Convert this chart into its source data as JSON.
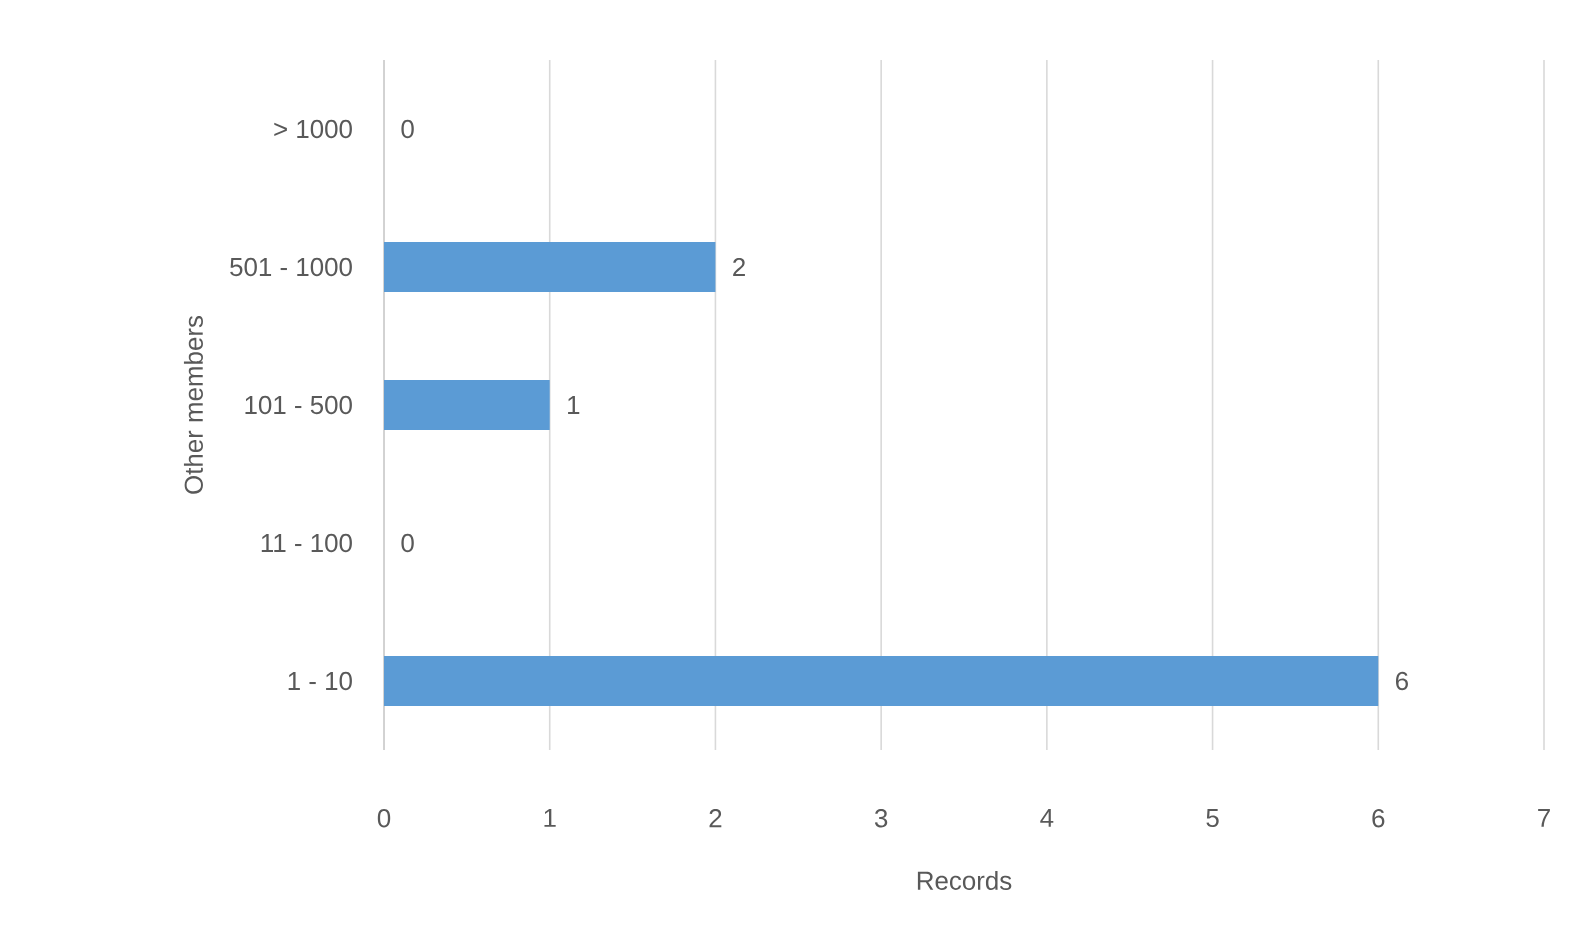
{
  "chart_data": {
    "type": "bar",
    "orientation": "horizontal",
    "categories": [
      "> 1000",
      "501 - 1000",
      "101 - 500",
      "11 - 100",
      "1 - 10"
    ],
    "values": [
      0,
      2,
      1,
      0,
      6
    ],
    "color": "#5b9bd5",
    "xlabel": "Records",
    "ylabel": "Other members",
    "xlim": [
      0,
      7
    ],
    "xticks": [
      0,
      1,
      2,
      3,
      4,
      5,
      6,
      7
    ],
    "grid": "x",
    "data_labels": true
  }
}
